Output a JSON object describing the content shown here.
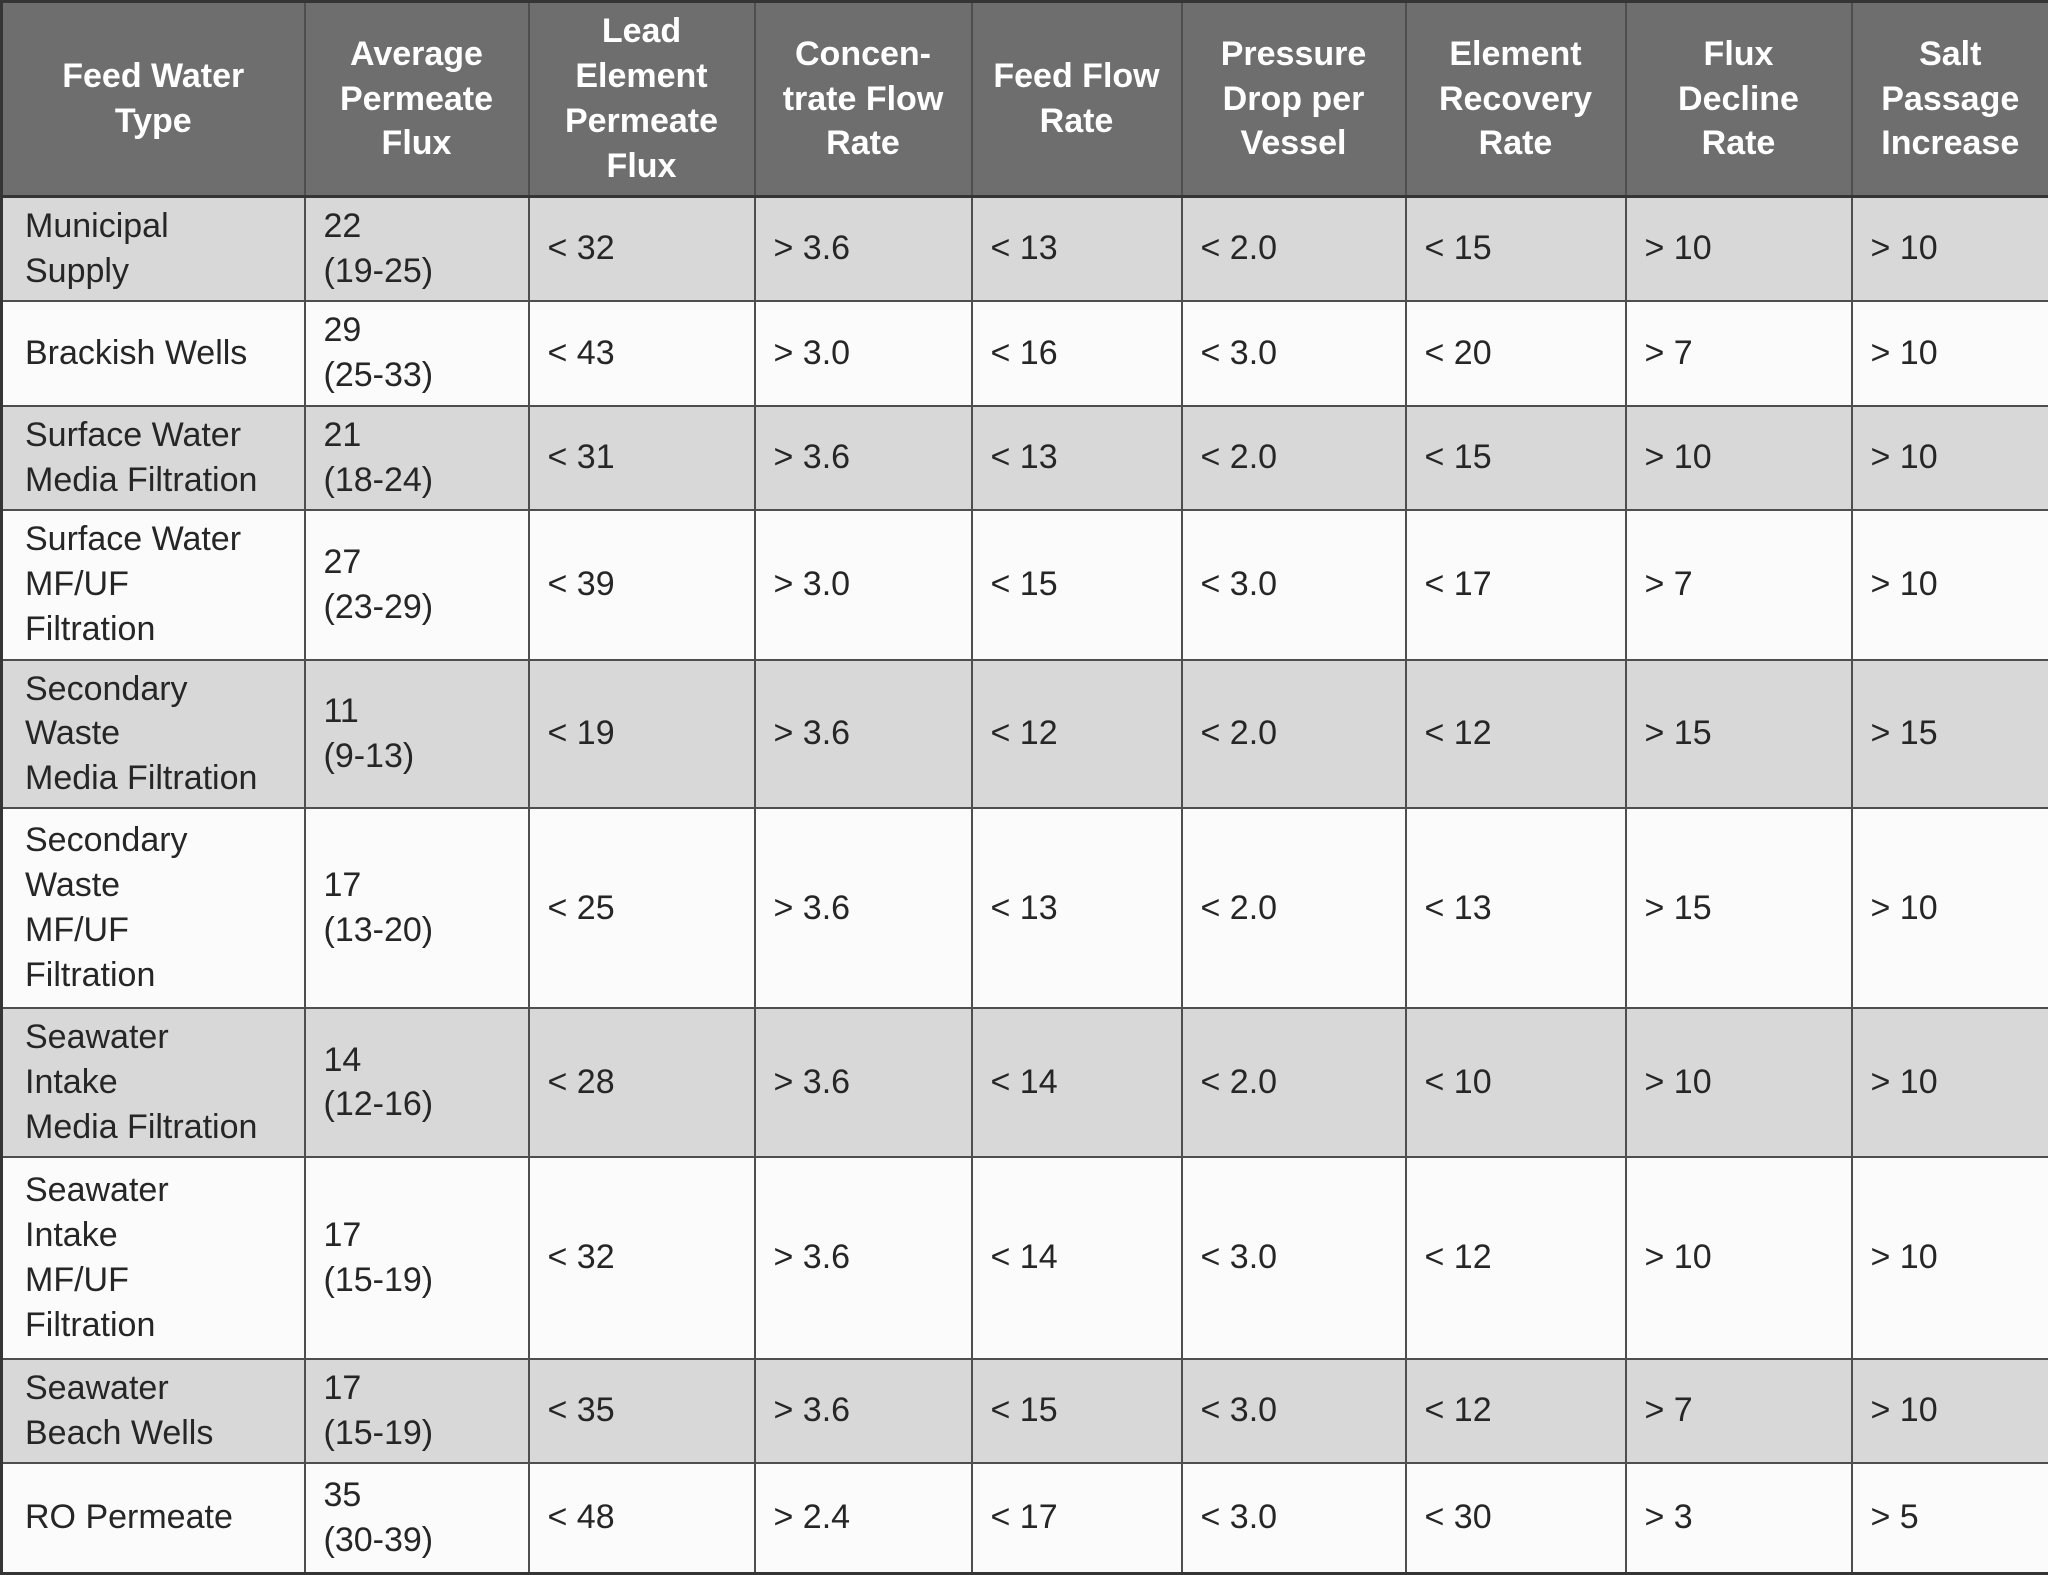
{
  "colors": {
    "header_bg": "#6e6e6e",
    "header_text": "#ffffff",
    "shaded_row_bg": "#d8d8d8",
    "plain_row_bg": "#fbfbfb",
    "cell_text": "#262626",
    "grid_border": "#4e4e4e"
  },
  "table": {
    "columns": [
      {
        "label": "Feed Water\nType"
      },
      {
        "label": "Average\nPermeate\nFlux"
      },
      {
        "label": "Lead\nElement\nPermeate\nFlux"
      },
      {
        "label": "Concen-\ntrate Flow\nRate"
      },
      {
        "label": "Feed Flow\nRate"
      },
      {
        "label": "Pressure\nDrop per\nVessel"
      },
      {
        "label": "Element\nRecovery\nRate"
      },
      {
        "label": "Flux\nDecline\nRate"
      },
      {
        "label": "Salt\nPassage\nIncrease"
      }
    ],
    "rows": [
      {
        "shaded": true,
        "cells": [
          "Municipal\nSupply",
          "22\n(19-25)",
          "< 32",
          "> 3.6",
          "< 13",
          "< 2.0",
          "< 15",
          "> 10",
          "> 10"
        ]
      },
      {
        "shaded": false,
        "cells": [
          "Brackish Wells",
          "29\n(25-33)",
          "< 43",
          "> 3.0",
          "< 16",
          "< 3.0",
          "< 20",
          "> 7",
          "> 10"
        ]
      },
      {
        "shaded": true,
        "cells": [
          "Surface Water\nMedia Filtration",
          "21\n(18-24)",
          "< 31",
          "> 3.6",
          "< 13",
          "< 2.0",
          "< 15",
          "> 10",
          "> 10"
        ]
      },
      {
        "shaded": false,
        "cells": [
          "Surface Water\nMF/UF\nFiltration",
          "27\n(23-29)",
          "< 39",
          "> 3.0",
          "< 15",
          "< 3.0",
          "< 17",
          "> 7",
          "> 10"
        ]
      },
      {
        "shaded": true,
        "cells": [
          "Secondary\nWaste\nMedia Filtration",
          "11\n(9-13)",
          "< 19",
          "> 3.6",
          "< 12",
          "< 2.0",
          "< 12",
          "> 15",
          "> 15"
        ]
      },
      {
        "shaded": false,
        "cells": [
          "Secondary\nWaste\nMF/UF\nFiltration",
          "17\n(13-20)",
          "< 25",
          "> 3.6",
          "< 13",
          "< 2.0",
          "< 13",
          "> 15",
          "> 10"
        ]
      },
      {
        "shaded": true,
        "cells": [
          "Seawater\nIntake\nMedia Filtration",
          "14\n(12-16)",
          "< 28",
          "> 3.6",
          "< 14",
          "< 2.0",
          "< 10",
          "> 10",
          "> 10"
        ]
      },
      {
        "shaded": false,
        "cells": [
          "Seawater\nIntake\nMF/UF\nFiltration",
          "17\n(15-19)",
          "< 32",
          "> 3.6",
          "< 14",
          "< 3.0",
          "< 12",
          "> 10",
          "> 10"
        ]
      },
      {
        "shaded": true,
        "cells": [
          "Seawater\nBeach Wells",
          "17\n(15-19)",
          "< 35",
          "> 3.6",
          "< 15",
          "< 3.0",
          "< 12",
          "> 7",
          "> 10"
        ]
      },
      {
        "shaded": false,
        "cells": [
          "RO Permeate",
          "35\n(30-39)",
          "< 48",
          "> 2.4",
          "< 17",
          "< 3.0",
          "< 30",
          "> 3",
          "> 5"
        ]
      }
    ]
  }
}
